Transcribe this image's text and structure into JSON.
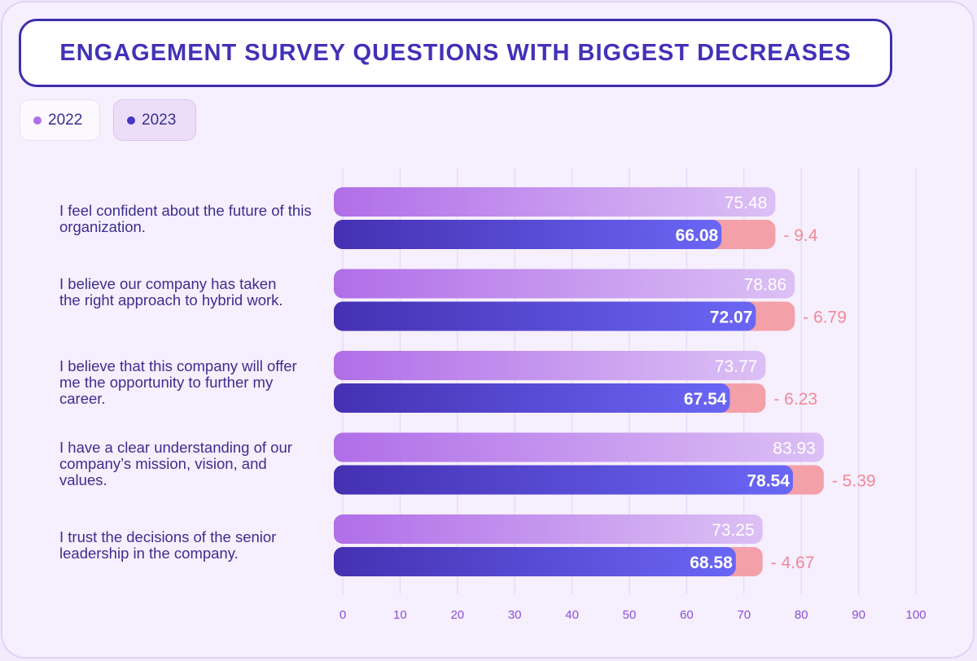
{
  "title": "ENGAGEMENT SURVEY QUESTIONS WITH BIGGEST DECREASES",
  "legend": [
    {
      "label": "2022",
      "color": "#b06ee8"
    },
    {
      "label": "2023",
      "color": "#4a35c2"
    }
  ],
  "colors": {
    "bar_2022_start": "#b06ee8",
    "bar_2022_end": "#dcc0f5",
    "bar_2023_start": "#4530b2",
    "bar_2023_end": "#6a66f5",
    "diff_fill": "#f4a0a8",
    "diff_text": "#f08a98",
    "grid": "#e6d8f5",
    "tick_text": "#8a4fd8"
  },
  "chart_data": {
    "type": "bar",
    "orientation": "horizontal",
    "title": "ENGAGEMENT SURVEY QUESTIONS WITH BIGGEST DECREASES",
    "categories": [
      "I feel confident about the future of this organization.",
      "I believe our company has taken the right approach to hybrid work.",
      "I believe that this company will offer me the opportunity to further my career.",
      "I have a clear understanding of our company’s mission, vision, and values.",
      "I trust the decisions of the senior leadership in the company."
    ],
    "series": [
      {
        "name": "2022",
        "values": [
          75.48,
          78.86,
          73.77,
          83.93,
          73.25
        ]
      },
      {
        "name": "2023",
        "values": [
          66.08,
          72.07,
          67.54,
          78.54,
          68.58
        ]
      }
    ],
    "value_labels_2022": [
      "75.48",
      "78.86",
      "73.77",
      "83.93",
      "73.25"
    ],
    "value_labels_2023": [
      "66.08",
      "72.07",
      "67.54",
      "78.54",
      "68.58"
    ],
    "difference_labels": [
      "- 9.4",
      "- 6.79",
      "- 6.23",
      "- 5.39",
      "- 4.67"
    ],
    "xlim": [
      0,
      100
    ],
    "x_ticks": [
      "0",
      "10",
      "20",
      "30",
      "40",
      "50",
      "60",
      "70",
      "80",
      "90",
      "100"
    ],
    "grid": true,
    "legend_position": "top-left"
  }
}
